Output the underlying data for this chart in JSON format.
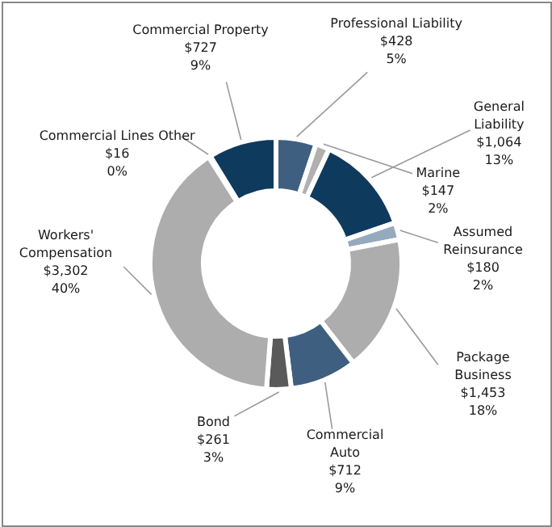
{
  "chart_data": {
    "type": "donut",
    "categories": [
      "Commercial Property",
      "Professional Liability",
      "Marine",
      "General Liability",
      "Assumed Reinsurance",
      "Package Business",
      "Commercial Auto",
      "Bond",
      "Workers' Compensation",
      "Commercial Lines Other"
    ],
    "values": [
      727,
      428,
      147,
      1064,
      180,
      1453,
      712,
      261,
      3302,
      16
    ],
    "value_labels": [
      "$727\n9%",
      "$428\n5%",
      "$147\n2%",
      "$1,064\n13%",
      "$180\n2%",
      "$1,453\n18%",
      "$712\n9%",
      "$261\n3%",
      "$3,302\n40%",
      "$16\n0%"
    ],
    "colors": [
      "#0e3a5e",
      "#3f5f80",
      "#b0b0b0",
      "#0e3a5e",
      "#95aabd",
      "#adadad",
      "#3f5f80",
      "#5a5a5a",
      "#adadad",
      "#adadad"
    ]
  }
}
